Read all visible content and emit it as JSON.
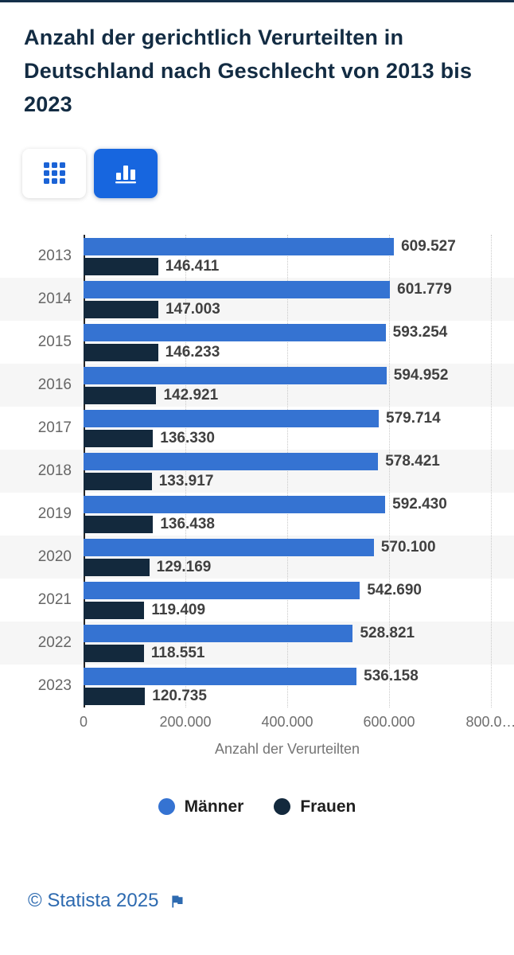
{
  "colors": {
    "maenner_blue": "#3573d2",
    "frauen_navy": "#13293d",
    "active_button_blue": "#1766df",
    "icon_blue": "#1b63d6",
    "link_blue": "#2d6ab0",
    "title_navy": "#132c43"
  },
  "toolbar": {
    "table_view_icon": "grid-icon",
    "chart_view_icon": "bar-chart-icon",
    "active_view": "chart"
  },
  "chart_data": {
    "type": "bar",
    "orientation": "horizontal",
    "title": "Anzahl der gerichtlich Verurteilten in Deutschland nach Geschlecht von 2013 bis 2023",
    "categories": [
      "2013",
      "2014",
      "2015",
      "2016",
      "2017",
      "2018",
      "2019",
      "2020",
      "2021",
      "2022",
      "2023"
    ],
    "series": [
      {
        "name": "Männer",
        "color": "#3573d2",
        "values": [
          609527,
          601779,
          593254,
          594952,
          579714,
          578421,
          592430,
          570100,
          542690,
          528821,
          536158
        ],
        "labels": [
          "609.527",
          "601.779",
          "593.254",
          "594.952",
          "579.714",
          "578.421",
          "592.430",
          "570.100",
          "542.690",
          "528.821",
          "536.158"
        ]
      },
      {
        "name": "Frauen",
        "color": "#13293d",
        "values": [
          146411,
          147003,
          146233,
          142921,
          136330,
          133917,
          136438,
          129169,
          119409,
          118551,
          120735
        ],
        "labels": [
          "146.411",
          "147.003",
          "146.233",
          "142.921",
          "136.330",
          "133.917",
          "136.438",
          "129.169",
          "119.409",
          "118.551",
          "120.735"
        ]
      }
    ],
    "xlabel": "Anzahl der Verurteilten",
    "x_ticks": [
      "0",
      "200.000",
      "400.000",
      "600.000",
      "800.0…"
    ],
    "x_tick_values": [
      0,
      200000,
      400000,
      600000,
      800000
    ],
    "xlim": [
      0,
      800000
    ],
    "grid": "vertical-dotted",
    "legend_position": "bottom"
  },
  "footer": {
    "copyright": "© Statista 2025",
    "flag_icon": "report-flag-icon"
  }
}
